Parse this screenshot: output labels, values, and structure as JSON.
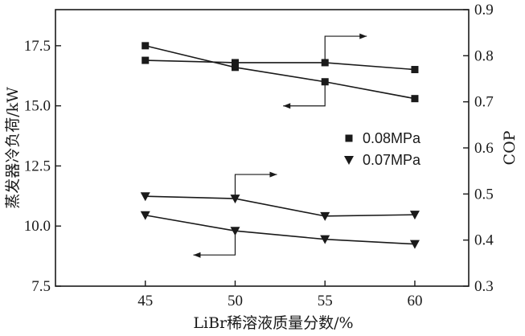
{
  "chart_data": {
    "type": "line",
    "xlabel": "LiBr稀溶液质量分数/%",
    "ylabel_left": "蒸发器冷负荷/kW",
    "ylabel_right": "COP",
    "x": [
      45,
      50,
      55,
      60
    ],
    "xlim": [
      40,
      63
    ],
    "ylim_left": [
      7.5,
      19.0
    ],
    "ylim_right": [
      0.3,
      0.9
    ],
    "xticks": [
      "45",
      "50",
      "55",
      "60"
    ],
    "yticks_left": [
      "7.5",
      "10.0",
      "12.5",
      "15.0",
      "17.5"
    ],
    "yticks_right": [
      "0.3",
      "0.4",
      "0.5",
      "0.6",
      "0.7",
      "0.8",
      "0.9"
    ],
    "grid": false,
    "legend_position": "center-right",
    "legend": [
      {
        "label": "0.08MPa",
        "marker": "square"
      },
      {
        "label": "0.07MPa",
        "marker": "triangle-down"
      }
    ],
    "series": [
      {
        "name": "0.08MPa",
        "marker": "square",
        "axis": "left",
        "values": [
          17.5,
          16.6,
          16.0,
          15.3
        ]
      },
      {
        "name": "0.08MPa",
        "marker": "square",
        "axis": "right",
        "values": [
          0.79,
          0.785,
          0.785,
          0.77
        ]
      },
      {
        "name": "0.07MPa",
        "marker": "triangle-down",
        "axis": "right",
        "values": [
          0.495,
          0.49,
          0.452,
          0.455
        ]
      },
      {
        "name": "0.07MPa",
        "marker": "triangle-down",
        "axis": "left",
        "values": [
          10.45,
          9.8,
          9.45,
          9.25
        ]
      }
    ],
    "axis_indicators": [
      {
        "x": 55,
        "y": 16.0,
        "axis": "left",
        "direction": "left"
      },
      {
        "x": 55,
        "y": 0.79,
        "axis": "right",
        "direction": "right"
      },
      {
        "x": 50,
        "y": 0.49,
        "axis": "right",
        "direction": "right"
      },
      {
        "x": 50,
        "y": 9.8,
        "axis": "left",
        "direction": "left"
      }
    ],
    "colors": {
      "line": "#1a1a1a",
      "background": "#ffffff"
    }
  }
}
